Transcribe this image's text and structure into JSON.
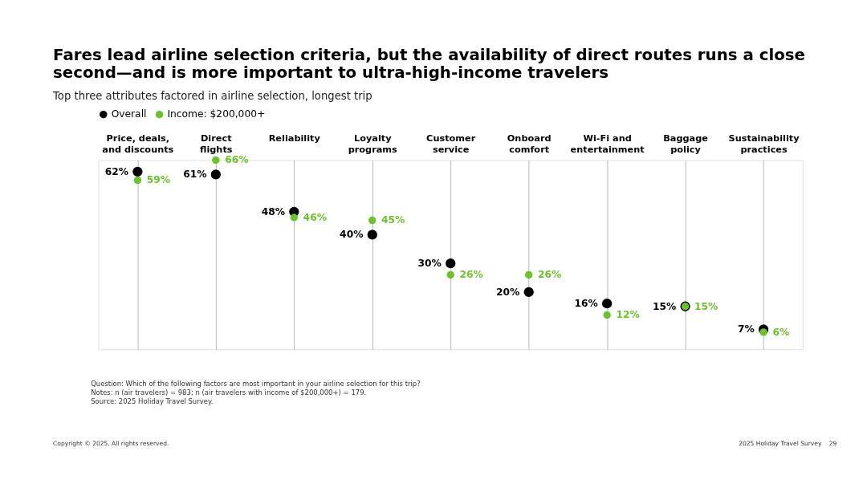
{
  "chart_data": {
    "type": "scatter",
    "title": "Fares lead airline selection criteria, but the availability of direct routes runs a close\nsecond—and is more important to ultra-high-income travelers",
    "subtitle": "Top three attributes factored in airline selection, longest trip",
    "categories": [
      "Price, deals,\nand discounts",
      "Direct\nflights",
      "Reliability",
      "Loyalty\nprograms",
      "Customer\nservice",
      "Onboard\ncomfort",
      "Wi-Fi and\nentertainment",
      "Baggage\npolicy",
      "Sustainability\npractices"
    ],
    "series": [
      {
        "name": "Overall",
        "color": "#000000",
        "values": [
          62,
          61,
          48,
          40,
          30,
          20,
          16,
          15,
          7
        ],
        "value_labels": [
          "62%",
          "61%",
          "48%",
          "40%",
          "30%",
          "20%",
          "16%",
          "15%",
          "7%"
        ]
      },
      {
        "name": "Income: $200,000+",
        "color": "#6cc12e",
        "values": [
          59,
          66,
          46,
          45,
          26,
          26,
          12,
          15,
          6
        ],
        "value_labels": [
          "59%",
          "66%",
          "46%",
          "45%",
          "26%",
          "26%",
          "12%",
          "15%",
          "6%"
        ]
      }
    ],
    "marker": "circle",
    "grid": "x",
    "legend": "top",
    "tick_labels": "x",
    "annotations": [
      "Question: Which of the following factors are most important in your airline selection for this trip?",
      "Notes: n (air travelers) = 983; n (air travelers with income of $200,000+) = 179.",
      "Source: 2025 Holiday Travel Survey.",
      "Copyright © 2025. All rights reserved.",
      "2025 Holiday Travel Survey",
      "29"
    ]
  }
}
